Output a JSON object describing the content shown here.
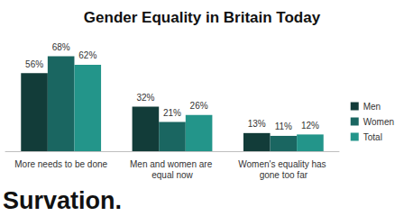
{
  "chart_data": {
    "type": "bar",
    "title": "Gender Equality in Britain Today",
    "categories": [
      "More needs to be done",
      "Men and women are equal now",
      "Women's equality has gone too far"
    ],
    "series": [
      {
        "name": "Men",
        "color": "#123c39",
        "values": [
          56,
          32,
          13
        ],
        "value_labels": [
          "56%",
          "32%",
          "13%"
        ]
      },
      {
        "name": "Women",
        "color": "#1a6661",
        "values": [
          68,
          21,
          11
        ],
        "value_labels": [
          "68%",
          "21%",
          "11%"
        ]
      },
      {
        "name": "Total",
        "color": "#23958a",
        "values": [
          62,
          26,
          12
        ],
        "value_labels": [
          "62%",
          "26%",
          "12%"
        ]
      }
    ],
    "ylim": [
      0,
      80
    ],
    "yticks": [
      0,
      20,
      40,
      60,
      80
    ],
    "grid": false,
    "legend": "right",
    "data_labels": true,
    "tick_labels": "x",
    "annotations": [
      "Survation."
    ]
  }
}
